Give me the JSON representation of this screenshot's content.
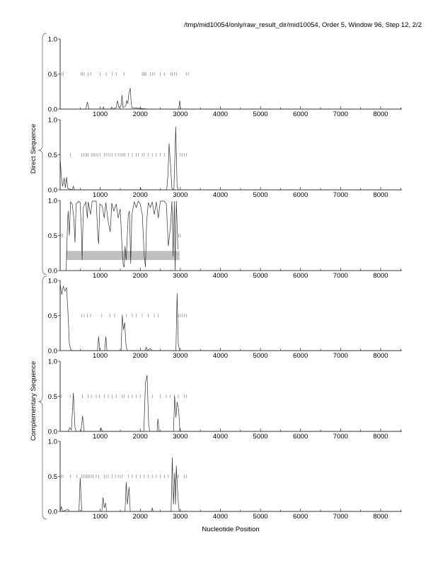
{
  "chart_data": {
    "type": "line",
    "title": "/tmp/mid10054/only/raw_result_dir/mid10054, Order 5, Window 96, Step 12, 2/2",
    "xlabel": "Nucleotide Position",
    "group_labels": [
      "Direct Sequence",
      "Complementary Sequence"
    ],
    "xlim": [
      0,
      8530
    ],
    "ylim": [
      0,
      1
    ],
    "x_ticks": [
      1000,
      2000,
      3000,
      4000,
      5000,
      6000,
      7000,
      8000
    ],
    "x_tick_labels": [
      "1000",
      "2000",
      "3000",
      "4000",
      "5000",
      "6000",
      "7000",
      "8000"
    ],
    "y_tick_labels": [
      "0.0",
      "0.5",
      "1.0"
    ],
    "colors": {
      "line": "#333333",
      "orf": "#888888",
      "box": "#c0c0c0"
    },
    "panels": [
      {
        "name": "direct-frame-1",
        "points": [
          [
            0,
            0
          ],
          [
            640,
            0
          ],
          [
            680,
            0.1
          ],
          [
            720,
            0
          ],
          [
            1060,
            0
          ],
          [
            1080,
            0.03
          ],
          [
            1100,
            0
          ],
          [
            1260,
            0
          ],
          [
            1290,
            0.03
          ],
          [
            1310,
            0
          ],
          [
            1400,
            0.02
          ],
          [
            1430,
            0.12
          ],
          [
            1470,
            0.02
          ],
          [
            1520,
            0.05
          ],
          [
            1545,
            0.2
          ],
          [
            1570,
            0.02
          ],
          [
            1640,
            0.05
          ],
          [
            1660,
            0.12
          ],
          [
            1690,
            0.08
          ],
          [
            1710,
            0.2
          ],
          [
            1750,
            0.3
          ],
          [
            1770,
            0.12
          ],
          [
            1790,
            0.02
          ],
          [
            2200,
            0
          ],
          [
            2960,
            0
          ],
          [
            2985,
            0.12
          ],
          [
            3010,
            0
          ],
          [
            8530,
            0
          ]
        ],
        "orfs": [
          40,
          80,
          520,
          560,
          600,
          700,
          760,
          1000,
          1150,
          1300,
          1400,
          1600,
          2050,
          2080,
          2110,
          2140,
          2250,
          2300,
          2350,
          2500,
          2600,
          2760,
          2800,
          2850,
          2900,
          3150,
          3200
        ]
      },
      {
        "name": "direct-frame-2",
        "points": [
          [
            0,
            0.45
          ],
          [
            30,
            0.2
          ],
          [
            60,
            0.05
          ],
          [
            100,
            0.17
          ],
          [
            130,
            0.03
          ],
          [
            160,
            0.18
          ],
          [
            190,
            0.02
          ],
          [
            300,
            0
          ],
          [
            330,
            0.05
          ],
          [
            360,
            0
          ],
          [
            1990,
            0
          ],
          [
            2010,
            0.02
          ],
          [
            2030,
            0
          ],
          [
            2660,
            0
          ],
          [
            2690,
            0.2
          ],
          [
            2720,
            0.66
          ],
          [
            2760,
            0.3
          ],
          [
            2790,
            0.02
          ],
          [
            2840,
            0
          ],
          [
            2885,
            0.9
          ],
          [
            2920,
            0.05
          ],
          [
            2950,
            0
          ],
          [
            8530,
            0
          ]
        ],
        "orfs": [
          260,
          540,
          580,
          620,
          660,
          700,
          780,
          820,
          860,
          900,
          940,
          1000,
          1100,
          1150,
          1200,
          1250,
          1300,
          1380,
          1450,
          1500,
          1540,
          1580,
          1620,
          1700,
          1800,
          1900,
          1950,
          2050,
          2100,
          2200,
          2300,
          2400,
          2500,
          2600,
          2900,
          3000,
          3050,
          3100,
          3150
        ]
      },
      {
        "name": "direct-frame-3",
        "points": [
          [
            150,
            0.0
          ],
          [
            180,
            0.6
          ],
          [
            200,
            0.85
          ],
          [
            230,
            0.5
          ],
          [
            260,
            0.98
          ],
          [
            300,
            0.95
          ],
          [
            340,
            0.75
          ],
          [
            370,
            0.4
          ],
          [
            400,
            0.95
          ],
          [
            460,
            0.99
          ],
          [
            500,
            0.97
          ],
          [
            530,
            0.6
          ],
          [
            550,
            0.15
          ],
          [
            580,
            0.9
          ],
          [
            640,
            0.98
          ],
          [
            680,
            0.75
          ],
          [
            700,
            0.98
          ],
          [
            760,
            0.8
          ],
          [
            800,
            0.99
          ],
          [
            900,
            0.99
          ],
          [
            940,
            0.5
          ],
          [
            960,
            0.38
          ],
          [
            990,
            0.95
          ],
          [
            1050,
            0.92
          ],
          [
            1100,
            0.75
          ],
          [
            1140,
            0.97
          ],
          [
            1200,
            0.7
          ],
          [
            1250,
            0.55
          ],
          [
            1290,
            0.96
          ],
          [
            1340,
            0.85
          ],
          [
            1400,
            0.95
          ],
          [
            1450,
            0.75
          ],
          [
            1500,
            0.88
          ],
          [
            1540,
            0.4
          ],
          [
            1570,
            0.1
          ],
          [
            1600,
            0.05
          ],
          [
            1620,
            0.35
          ],
          [
            1650,
            0.15
          ],
          [
            1700,
            0.8
          ],
          [
            1730,
            0.85
          ],
          [
            1760,
            0.1
          ],
          [
            1790,
            0.8
          ],
          [
            1850,
            0.98
          ],
          [
            1900,
            0.9
          ],
          [
            1950,
            0.99
          ],
          [
            2000,
            0.95
          ],
          [
            2050,
            0.8
          ],
          [
            2100,
            0.2
          ],
          [
            2130,
            0.05
          ],
          [
            2160,
            0.7
          ],
          [
            2200,
            0.97
          ],
          [
            2250,
            0.9
          ],
          [
            2300,
            0.98
          ],
          [
            2350,
            0.8
          ],
          [
            2400,
            0.98
          ],
          [
            2450,
            0.75
          ],
          [
            2500,
            0.99
          ],
          [
            2600,
            0.99
          ],
          [
            2650,
            0.95
          ],
          [
            2700,
            0.35
          ],
          [
            2750,
            0.6
          ],
          [
            2790,
            0.99
          ],
          [
            2820,
            0.2
          ],
          [
            2850,
            0.99
          ],
          [
            2870,
            0.0
          ],
          [
            2900,
            0.99
          ],
          [
            2940,
            0.3
          ]
        ],
        "orfs": [
          20,
          60,
          2960,
          3000
        ],
        "box": {
          "x0": 150,
          "x1": 2980,
          "y0": 0.15,
          "y1": 0.28
        }
      },
      {
        "name": "complementary-frame-1",
        "points": [
          [
            0,
            0.95
          ],
          [
            40,
            0.8
          ],
          [
            80,
            0.92
          ],
          [
            120,
            0.85
          ],
          [
            160,
            0.9
          ],
          [
            200,
            0.5
          ],
          [
            230,
            0.1
          ],
          [
            260,
            0.02
          ],
          [
            300,
            0
          ],
          [
            930,
            0
          ],
          [
            960,
            0.2
          ],
          [
            990,
            0
          ],
          [
            1110,
            0
          ],
          [
            1140,
            0.2
          ],
          [
            1170,
            0
          ],
          [
            1520,
            0
          ],
          [
            1550,
            0.5
          ],
          [
            1580,
            0.3
          ],
          [
            1610,
            0.4
          ],
          [
            1640,
            0.1
          ],
          [
            1670,
            0
          ],
          [
            2120,
            0
          ],
          [
            2150,
            0.05
          ],
          [
            2180,
            0
          ],
          [
            2250,
            0.03
          ],
          [
            2300,
            0
          ],
          [
            2890,
            0
          ],
          [
            2920,
            0.82
          ],
          [
            2950,
            0.1
          ],
          [
            2980,
            0
          ],
          [
            8530,
            0
          ]
        ],
        "orfs": [
          540,
          600,
          680,
          760,
          1040,
          1240,
          1360,
          1550,
          1650,
          1800,
          1900,
          2050,
          2200,
          2350,
          2450,
          2950,
          3000,
          3050,
          3100,
          3150
        ]
      },
      {
        "name": "complementary-frame-2",
        "points": [
          [
            0,
            0
          ],
          [
            200,
            0
          ],
          [
            240,
            0.05
          ],
          [
            280,
            0.02
          ],
          [
            330,
            0.55
          ],
          [
            370,
            0.05
          ],
          [
            400,
            0
          ],
          [
            520,
            0
          ],
          [
            560,
            0.22
          ],
          [
            600,
            0
          ],
          [
            1000,
            0
          ],
          [
            1020,
            0.05
          ],
          [
            1050,
            0
          ],
          [
            2090,
            0
          ],
          [
            2130,
            0.7
          ],
          [
            2170,
            0.8
          ],
          [
            2210,
            0.1
          ],
          [
            2240,
            0
          ],
          [
            2420,
            0
          ],
          [
            2440,
            0.18
          ],
          [
            2470,
            0
          ],
          [
            2830,
            0
          ],
          [
            2860,
            0.5
          ],
          [
            2890,
            0.2
          ],
          [
            2920,
            0.42
          ],
          [
            2960,
            0.3
          ],
          [
            2990,
            0
          ],
          [
            8530,
            0
          ]
        ],
        "orfs": [
          30,
          250,
          560,
          700,
          780,
          900,
          980,
          1100,
          1200,
          1300,
          1400,
          1550,
          1600,
          1700,
          1800,
          1900,
          2000,
          2300,
          2500,
          2650,
          2750,
          2850,
          2950,
          3100,
          3150
        ]
      },
      {
        "name": "complementary-frame-3",
        "points": [
          [
            0,
            0
          ],
          [
            30,
            0.07
          ],
          [
            60,
            0
          ],
          [
            200,
            0.03
          ],
          [
            230,
            0
          ],
          [
            470,
            0
          ],
          [
            500,
            0.48
          ],
          [
            540,
            0
          ],
          [
            1040,
            0
          ],
          [
            1070,
            0.2
          ],
          [
            1100,
            0.05
          ],
          [
            1130,
            0.12
          ],
          [
            1160,
            0
          ],
          [
            1620,
            0
          ],
          [
            1650,
            0.42
          ],
          [
            1680,
            0.1
          ],
          [
            1720,
            0.35
          ],
          [
            1750,
            0
          ],
          [
            2280,
            0
          ],
          [
            2300,
            0.05
          ],
          [
            2320,
            0
          ],
          [
            2770,
            0
          ],
          [
            2800,
            0.77
          ],
          [
            2830,
            0.1
          ],
          [
            2860,
            0.55
          ],
          [
            2880,
            0.1
          ],
          [
            2900,
            0.65
          ],
          [
            2940,
            0.2
          ],
          [
            2970,
            0
          ],
          [
            8530,
            0
          ]
        ],
        "orfs": [
          30,
          70,
          260,
          420,
          540,
          580,
          620,
          660,
          700,
          740,
          780,
          820,
          900,
          960,
          1100,
          1150,
          1200,
          1300,
          1380,
          1450,
          1500,
          1550,
          1700,
          1800,
          1900,
          2000,
          2100,
          2200,
          2300,
          2400,
          2500,
          2600,
          2700,
          2900,
          2950,
          3100,
          3150
        ]
      }
    ]
  }
}
